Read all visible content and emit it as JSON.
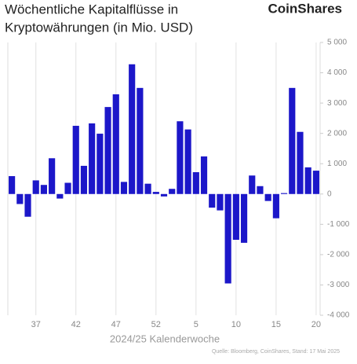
{
  "chart_data": {
    "type": "bar",
    "title": "Wöchentliche Kapitalflüsse in Kryptowährungen (in Mio. USD)",
    "title_lines": [
      "Wöchentliche Kapitalflüsse in",
      "Kryptowährungen (in Mio. USD)"
    ],
    "brand": "CoinShares",
    "x_label": "2024/25 Kalenderwoche",
    "source": "Quelle: Bloomberg, CoinShares, Stand: 17 Mai 2025",
    "categories": [
      null,
      null,
      null,
      "37",
      null,
      null,
      null,
      null,
      "42",
      null,
      null,
      null,
      null,
      "47",
      null,
      null,
      null,
      null,
      "52",
      null,
      null,
      null,
      null,
      "5",
      null,
      null,
      null,
      null,
      "10",
      null,
      null,
      null,
      null,
      "15",
      null,
      null,
      null,
      null,
      "20"
    ],
    "values": [
      590,
      -330,
      -750,
      450,
      300,
      1180,
      -150,
      370,
      2250,
      930,
      2330,
      1990,
      2870,
      3290,
      400,
      4280,
      3500,
      340,
      70,
      -80,
      170,
      2400,
      2130,
      720,
      1240,
      -450,
      -540,
      -2950,
      -1510,
      -1610,
      610,
      260,
      -230,
      -800,
      30,
      3500,
      2050,
      880,
      770
    ],
    "color": "#1c17c9",
    "ylim": [
      -4000,
      5000
    ],
    "yticks": [
      {
        "value": 5000,
        "label": "5 000"
      },
      {
        "value": 4000,
        "label": "4 000"
      },
      {
        "value": 3000,
        "label": "3 000"
      },
      {
        "value": 2000,
        "label": "2 000"
      },
      {
        "value": 1000,
        "label": "1 000"
      },
      0,
      {
        "value": -1000,
        "label": "-1 000"
      },
      {
        "value": -2000,
        "label": "-2 000"
      },
      {
        "value": -3000,
        "label": "-3 000"
      },
      {
        "value": -4000,
        "label": "-4 000"
      }
    ]
  }
}
